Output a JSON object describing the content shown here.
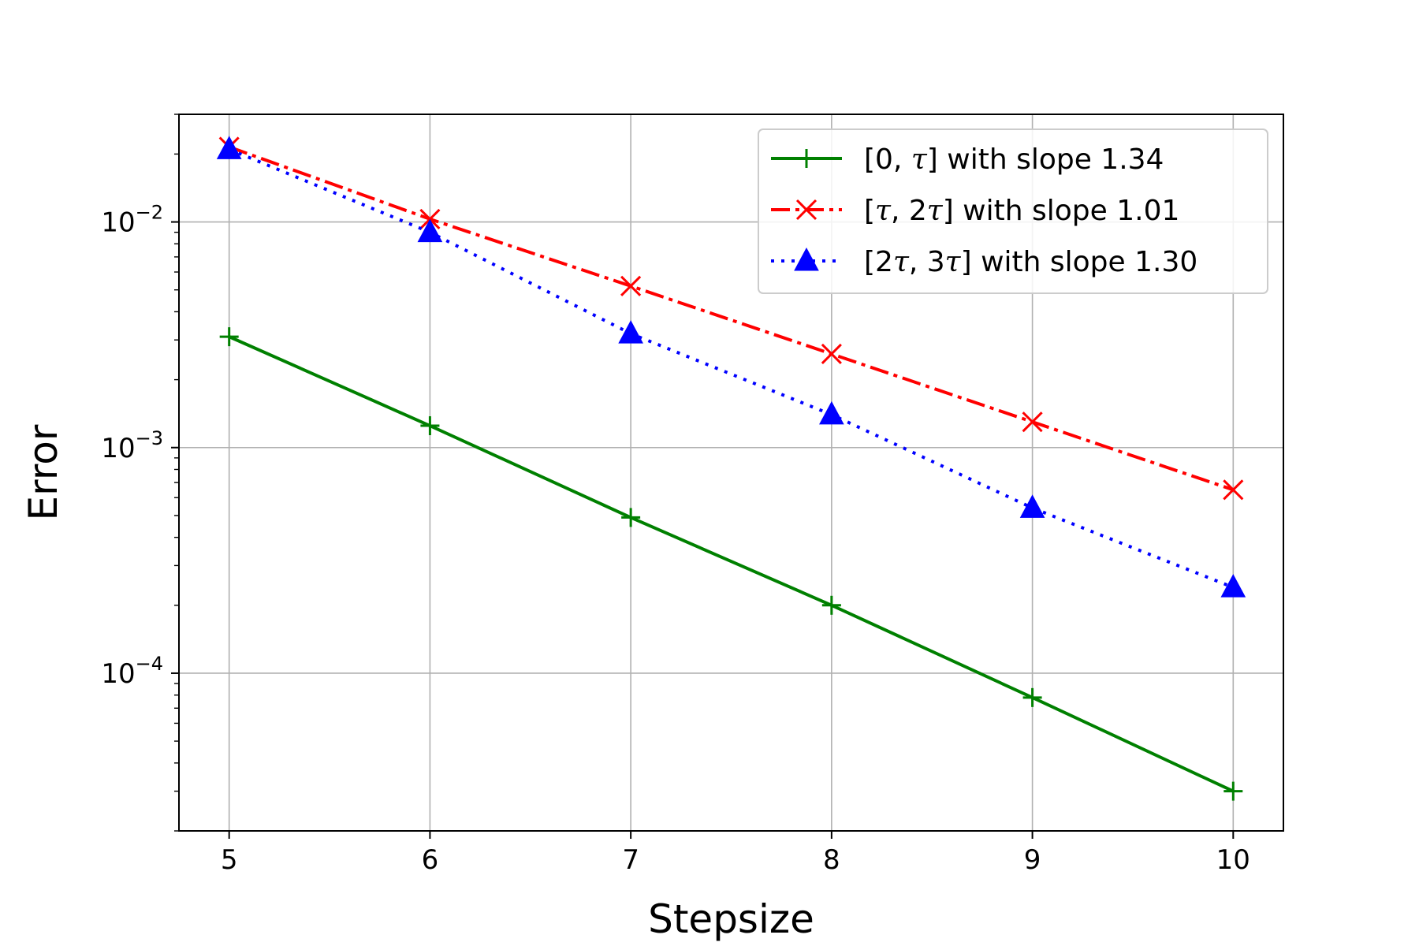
{
  "chart_data": {
    "type": "line",
    "title": "",
    "xlabel": "Stepsize",
    "ylabel": "Error",
    "xscale": "linear",
    "yscale": "log",
    "xlim": [
      4.75,
      10.25
    ],
    "ylim": [
      2e-05,
      0.03
    ],
    "grid": true,
    "legend_position": "top-right",
    "x_ticks": [
      5,
      6,
      7,
      8,
      9,
      10
    ],
    "x_tick_labels": [
      "5",
      "6",
      "7",
      "8",
      "9",
      "10"
    ],
    "y_ticks": [
      {
        "value": 0.01,
        "base": "10",
        "exponent": "−2"
      },
      {
        "value": 0.001,
        "base": "10",
        "exponent": "−3"
      },
      {
        "value": 0.0001,
        "base": "10",
        "exponent": "−4"
      }
    ],
    "series": [
      {
        "name_parts": [
          "[0, ",
          "τ",
          "] with slope 1.34"
        ],
        "color": "#008000",
        "line_style": "solid",
        "marker": "plus",
        "x": [
          5,
          6,
          7,
          8,
          9,
          10
        ],
        "y": [
          0.0031,
          0.00125,
          0.00049,
          0.0002,
          7.8e-05,
          3e-05
        ]
      },
      {
        "name_parts": [
          "[",
          "τ",
          ", 2",
          "τ",
          "] with slope 1.01"
        ],
        "color": "#ff0000",
        "line_style": "dashdot",
        "marker": "x",
        "x": [
          5,
          6,
          7,
          8,
          9,
          10
        ],
        "y": [
          0.0215,
          0.0103,
          0.0052,
          0.0026,
          0.0013,
          0.00065
        ]
      },
      {
        "name_parts": [
          "[2",
          "τ",
          ", 3",
          "τ",
          "] with slope 1.30"
        ],
        "color": "#0000ff",
        "line_style": "dotted",
        "marker": "triangle",
        "x": [
          5,
          6,
          7,
          8,
          9,
          10
        ],
        "y": [
          0.021,
          0.009,
          0.0032,
          0.0014,
          0.00054,
          0.00024
        ]
      }
    ]
  }
}
